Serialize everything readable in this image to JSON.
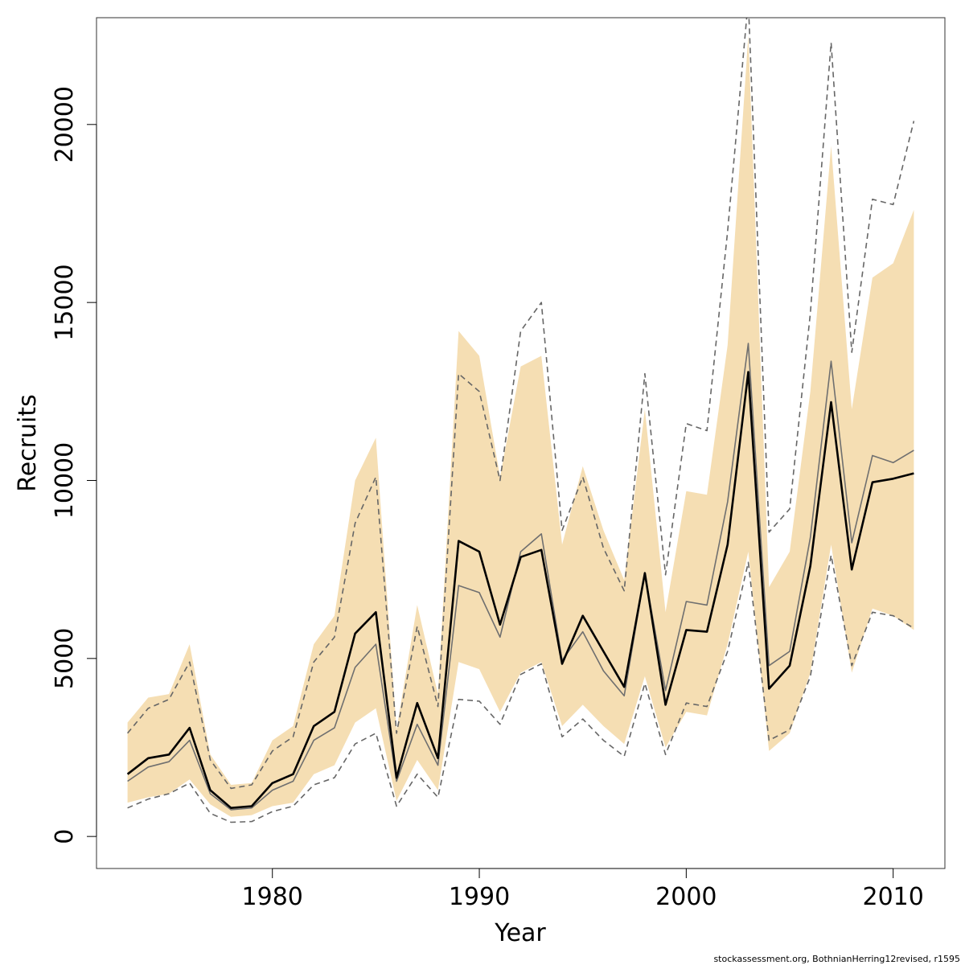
{
  "chart_data": {
    "type": "line",
    "xlabel": "Year",
    "ylabel": "Recruits",
    "xlim": [
      1971.5,
      2012.5
    ],
    "ylim": [
      -900,
      23000
    ],
    "x_ticks": [
      1980,
      1990,
      2000,
      2010
    ],
    "y_ticks": [
      0,
      5000,
      10000,
      15000,
      20000
    ],
    "grid": false,
    "years": [
      1973,
      1974,
      1975,
      1976,
      1977,
      1978,
      1979,
      1980,
      1981,
      1982,
      1983,
      1984,
      1985,
      1986,
      1987,
      1988,
      1989,
      1990,
      1991,
      1992,
      1993,
      1994,
      1995,
      1996,
      1997,
      1998,
      1999,
      2000,
      2001,
      2002,
      2003,
      2004,
      2005,
      2006,
      2007,
      2008,
      2009,
      2010,
      2011
    ],
    "band": {
      "color": "#f5deb3",
      "upper": [
        3200,
        3900,
        4000,
        5400,
        2300,
        1450,
        1500,
        2700,
        3100,
        5400,
        6200,
        10000,
        11200,
        3000,
        6500,
        4000,
        14200,
        13500,
        10100,
        13200,
        13500,
        8200,
        10400,
        8600,
        7200,
        12000,
        6300,
        9700,
        9600,
        13800,
        22500,
        7000,
        8000,
        12500,
        19400,
        12000,
        15700,
        16100,
        17600
      ],
      "lower": [
        950,
        1100,
        1200,
        1600,
        900,
        550,
        600,
        850,
        950,
        1750,
        2000,
        3200,
        3600,
        1000,
        2150,
        1300,
        4900,
        4700,
        3500,
        4600,
        4900,
        3100,
        3700,
        3100,
        2600,
        4500,
        2500,
        3500,
        3400,
        5400,
        8000,
        2400,
        2900,
        4600,
        8200,
        4600,
        6400,
        6200,
        5800
      ]
    },
    "series": [
      {
        "color": "#000000",
        "style": "solid-bold",
        "values": [
          1750,
          2200,
          2300,
          3050,
          1300,
          800,
          850,
          1500,
          1750,
          3100,
          3500,
          5700,
          6300,
          1650,
          3750,
          2200,
          8300,
          8000,
          5950,
          7850,
          8050,
          4850,
          6200,
          5200,
          4200,
          7400,
          3700,
          5800,
          5750,
          8200,
          13050,
          4150,
          4800,
          7600,
          12200,
          7500,
          9950,
          10050,
          10200
        ]
      },
      {
        "color": "#6f6f6f",
        "style": "solid-thin",
        "values": [
          1550,
          1950,
          2100,
          2700,
          1200,
          750,
          800,
          1300,
          1550,
          2700,
          3050,
          4750,
          5400,
          1550,
          3150,
          2000,
          7050,
          6850,
          5600,
          8000,
          8500,
          4950,
          5750,
          4650,
          3950,
          7400,
          4100,
          6600,
          6500,
          9400,
          13850,
          4800,
          5200,
          8400,
          13350,
          8250,
          10700,
          10500,
          10850
        ]
      },
      {
        "color": "#666666",
        "style": "dashed-upper",
        "values": [
          2900,
          3600,
          3850,
          4900,
          2150,
          1350,
          1450,
          2400,
          2800,
          4900,
          5600,
          8800,
          10100,
          2900,
          5900,
          3650,
          13000,
          12500,
          10000,
          14200,
          15000,
          8600,
          10100,
          8100,
          6900,
          13000,
          7350,
          11600,
          11400,
          17000,
          23500,
          8550,
          9200,
          14700,
          22300,
          13600,
          17900,
          17750,
          20100
        ]
      },
      {
        "color": "#666666",
        "style": "dashed-lower",
        "values": [
          800,
          1050,
          1200,
          1500,
          650,
          400,
          420,
          700,
          850,
          1450,
          1650,
          2600,
          2900,
          850,
          1750,
          1100,
          3850,
          3800,
          3150,
          4550,
          4850,
          2800,
          3300,
          2700,
          2250,
          4300,
          2300,
          3750,
          3650,
          5200,
          7700,
          2700,
          3000,
          4500,
          7900,
          4800,
          6300,
          6200,
          5850
        ]
      }
    ]
  },
  "footnote": "stockassessment.org, BothnianHerring12revised, r1595"
}
